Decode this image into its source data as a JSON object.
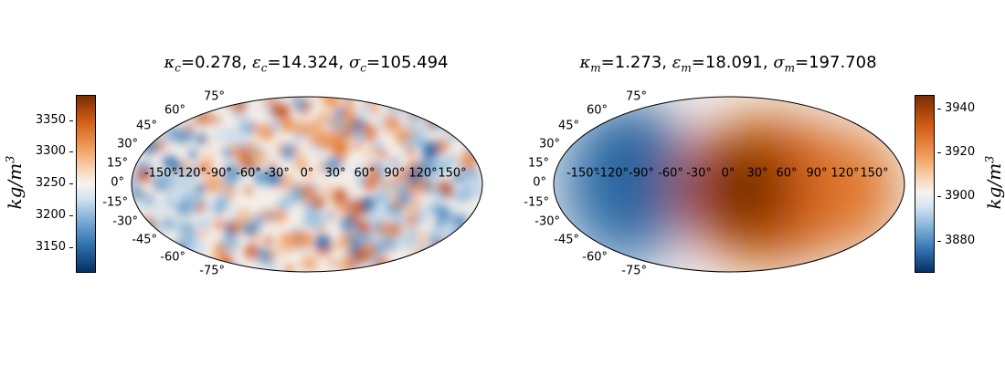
{
  "left_panel": {
    "title": {
      "kappa_symbol": "κ",
      "kappa_sub": "c",
      "kappa_value": "=0.278, ",
      "eps_symbol": "ε",
      "eps_sub": "c",
      "eps_value": "=14.324, ",
      "sigma_symbol": "σ",
      "sigma_sub": "c",
      "sigma_value": "=105.494"
    },
    "colorbar": {
      "label": "kg/m",
      "label_exp": "3",
      "ticks": [
        "3350",
        "3300",
        "3250",
        "3200",
        "3150"
      ],
      "tick_values": [
        3350,
        3300,
        3250,
        3200,
        3150
      ],
      "range": [
        3112,
        3387
      ]
    },
    "lat_labels": [
      "75°",
      "60°",
      "45°",
      "30°",
      "15°",
      "0°",
      "-15°",
      "-30°",
      "-45°",
      "-60°",
      "-75°"
    ],
    "lon_labels": [
      "-150°",
      "-120°",
      "-90°",
      "-60°",
      "-30°",
      "0°",
      "30°",
      "60°",
      "90°",
      "120°",
      "150°"
    ]
  },
  "right_panel": {
    "title": {
      "kappa_symbol": "κ",
      "kappa_sub": "m",
      "kappa_value": "=1.273, ",
      "eps_symbol": "ε",
      "eps_sub": "m",
      "eps_value": "=18.091, ",
      "sigma_symbol": "σ",
      "sigma_sub": "m",
      "sigma_value": "=197.708"
    },
    "colorbar": {
      "label": "kg/m",
      "label_exp": "3",
      "ticks": [
        "3940",
        "3920",
        "3900",
        "3880"
      ],
      "tick_values": [
        3940,
        3920,
        3900,
        3880
      ],
      "range": [
        3866,
        3948
      ]
    },
    "lat_labels": [
      "75°",
      "60°",
      "45°",
      "30°",
      "15°",
      "0°",
      "-15°",
      "-30°",
      "-45°",
      "-60°",
      "-75°"
    ],
    "lon_labels": [
      "-150°",
      "-120°",
      "-90°",
      "-60°",
      "-30°",
      "0°",
      "30°",
      "60°",
      "90°",
      "120°",
      "150°"
    ]
  },
  "colors": {
    "low": "#053061",
    "mid_low": "#2f7ab5",
    "neutral": "#f4f1ee",
    "mid_high": "#e2732b",
    "high": "#7a2d03"
  }
}
